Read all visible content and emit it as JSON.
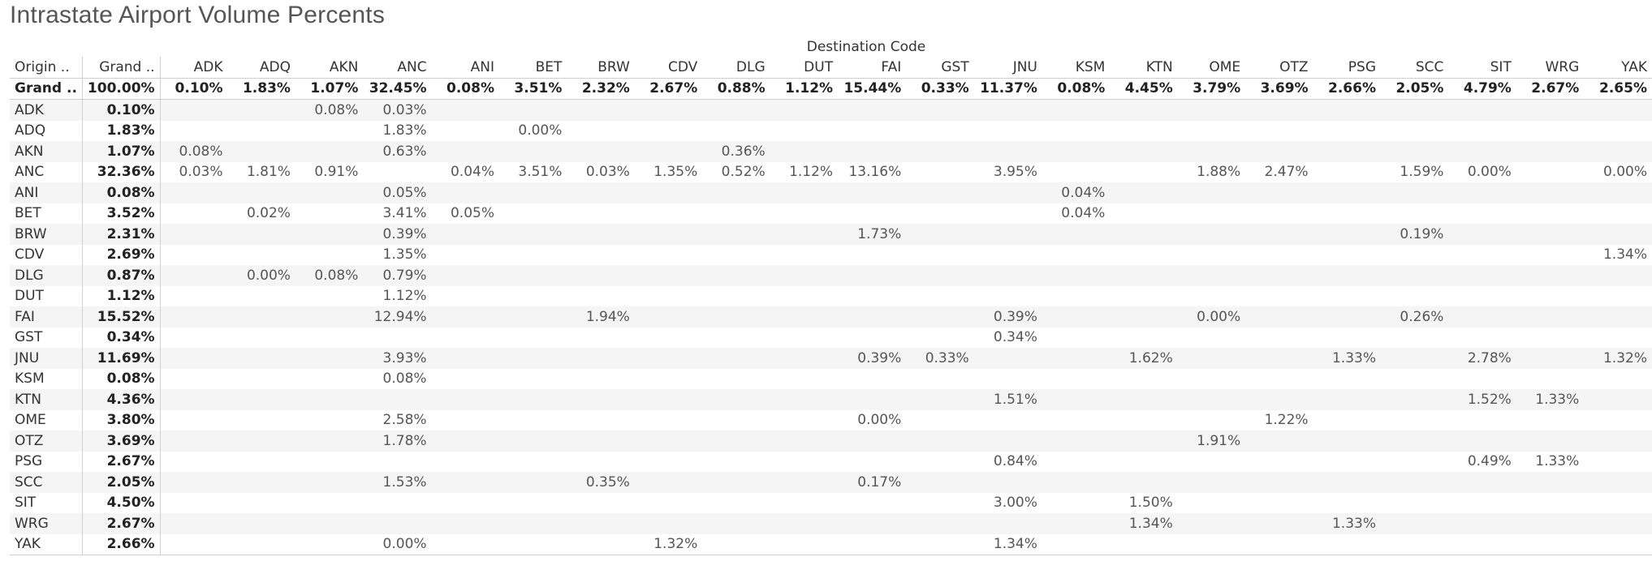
{
  "title": "Intrastate Airport Volume Percents",
  "chart_data": {
    "type": "table",
    "column_header_title": "Destination Code",
    "row_header_label": "Origin ..",
    "grand_label": "Grand ..",
    "destinations": [
      "ADK",
      "ADQ",
      "AKN",
      "ANC",
      "ANI",
      "BET",
      "BRW",
      "CDV",
      "DLG",
      "DUT",
      "FAI",
      "GST",
      "JNU",
      "KSM",
      "KTN",
      "OME",
      "OTZ",
      "PSG",
      "SCC",
      "SIT",
      "WRG",
      "YAK"
    ],
    "grand_total": "100.00%",
    "column_totals": [
      "0.10%",
      "1.83%",
      "1.07%",
      "32.45%",
      "0.08%",
      "3.51%",
      "2.32%",
      "2.67%",
      "0.88%",
      "1.12%",
      "15.44%",
      "0.33%",
      "11.37%",
      "0.08%",
      "4.45%",
      "3.79%",
      "3.69%",
      "2.66%",
      "2.05%",
      "4.79%",
      "2.67%",
      "2.65%"
    ],
    "rows": [
      {
        "origin": "ADK",
        "total": "0.10%",
        "cells": [
          "",
          "",
          "0.08%",
          "0.03%",
          "",
          "",
          "",
          "",
          "",
          "",
          "",
          "",
          "",
          "",
          "",
          "",
          "",
          "",
          "",
          "",
          "",
          ""
        ]
      },
      {
        "origin": "ADQ",
        "total": "1.83%",
        "cells": [
          "",
          "",
          "",
          "1.83%",
          "",
          "0.00%",
          "",
          "",
          "",
          "",
          "",
          "",
          "",
          "",
          "",
          "",
          "",
          "",
          "",
          "",
          "",
          ""
        ]
      },
      {
        "origin": "AKN",
        "total": "1.07%",
        "cells": [
          "0.08%",
          "",
          "",
          "0.63%",
          "",
          "",
          "",
          "",
          "0.36%",
          "",
          "",
          "",
          "",
          "",
          "",
          "",
          "",
          "",
          "",
          "",
          "",
          ""
        ]
      },
      {
        "origin": "ANC",
        "total": "32.36%",
        "cells": [
          "0.03%",
          "1.81%",
          "0.91%",
          "",
          "0.04%",
          "3.51%",
          "0.03%",
          "1.35%",
          "0.52%",
          "1.12%",
          "13.16%",
          "",
          "3.95%",
          "",
          "",
          "1.88%",
          "2.47%",
          "",
          "1.59%",
          "0.00%",
          "",
          "0.00%"
        ]
      },
      {
        "origin": "ANI",
        "total": "0.08%",
        "cells": [
          "",
          "",
          "",
          "0.05%",
          "",
          "",
          "",
          "",
          "",
          "",
          "",
          "",
          "",
          "0.04%",
          "",
          "",
          "",
          "",
          "",
          "",
          "",
          ""
        ]
      },
      {
        "origin": "BET",
        "total": "3.52%",
        "cells": [
          "",
          "0.02%",
          "",
          "3.41%",
          "0.05%",
          "",
          "",
          "",
          "",
          "",
          "",
          "",
          "",
          "0.04%",
          "",
          "",
          "",
          "",
          "",
          "",
          "",
          ""
        ]
      },
      {
        "origin": "BRW",
        "total": "2.31%",
        "cells": [
          "",
          "",
          "",
          "0.39%",
          "",
          "",
          "",
          "",
          "",
          "",
          "1.73%",
          "",
          "",
          "",
          "",
          "",
          "",
          "",
          "0.19%",
          "",
          "",
          ""
        ]
      },
      {
        "origin": "CDV",
        "total": "2.69%",
        "cells": [
          "",
          "",
          "",
          "1.35%",
          "",
          "",
          "",
          "",
          "",
          "",
          "",
          "",
          "",
          "",
          "",
          "",
          "",
          "",
          "",
          "",
          "",
          "1.34%"
        ]
      },
      {
        "origin": "DLG",
        "total": "0.87%",
        "cells": [
          "",
          "0.00%",
          "0.08%",
          "0.79%",
          "",
          "",
          "",
          "",
          "",
          "",
          "",
          "",
          "",
          "",
          "",
          "",
          "",
          "",
          "",
          "",
          "",
          ""
        ]
      },
      {
        "origin": "DUT",
        "total": "1.12%",
        "cells": [
          "",
          "",
          "",
          "1.12%",
          "",
          "",
          "",
          "",
          "",
          "",
          "",
          "",
          "",
          "",
          "",
          "",
          "",
          "",
          "",
          "",
          "",
          ""
        ]
      },
      {
        "origin": "FAI",
        "total": "15.52%",
        "cells": [
          "",
          "",
          "",
          "12.94%",
          "",
          "",
          "1.94%",
          "",
          "",
          "",
          "",
          "",
          "0.39%",
          "",
          "",
          "0.00%",
          "",
          "",
          "0.26%",
          "",
          "",
          ""
        ]
      },
      {
        "origin": "GST",
        "total": "0.34%",
        "cells": [
          "",
          "",
          "",
          "",
          "",
          "",
          "",
          "",
          "",
          "",
          "",
          "",
          "0.34%",
          "",
          "",
          "",
          "",
          "",
          "",
          "",
          "",
          ""
        ]
      },
      {
        "origin": "JNU",
        "total": "11.69%",
        "cells": [
          "",
          "",
          "",
          "3.93%",
          "",
          "",
          "",
          "",
          "",
          "",
          "0.39%",
          "0.33%",
          "",
          "",
          "1.62%",
          "",
          "",
          "1.33%",
          "",
          "2.78%",
          "",
          "1.32%"
        ]
      },
      {
        "origin": "KSM",
        "total": "0.08%",
        "cells": [
          "",
          "",
          "",
          "0.08%",
          "",
          "",
          "",
          "",
          "",
          "",
          "",
          "",
          "",
          "",
          "",
          "",
          "",
          "",
          "",
          "",
          "",
          ""
        ]
      },
      {
        "origin": "KTN",
        "total": "4.36%",
        "cells": [
          "",
          "",
          "",
          "",
          "",
          "",
          "",
          "",
          "",
          "",
          "",
          "",
          "1.51%",
          "",
          "",
          "",
          "",
          "",
          "",
          "1.52%",
          "1.33%",
          ""
        ]
      },
      {
        "origin": "OME",
        "total": "3.80%",
        "cells": [
          "",
          "",
          "",
          "2.58%",
          "",
          "",
          "",
          "",
          "",
          "",
          "0.00%",
          "",
          "",
          "",
          "",
          "",
          "1.22%",
          "",
          "",
          "",
          "",
          ""
        ]
      },
      {
        "origin": "OTZ",
        "total": "3.69%",
        "cells": [
          "",
          "",
          "",
          "1.78%",
          "",
          "",
          "",
          "",
          "",
          "",
          "",
          "",
          "",
          "",
          "",
          "1.91%",
          "",
          "",
          "",
          "",
          "",
          ""
        ]
      },
      {
        "origin": "PSG",
        "total": "2.67%",
        "cells": [
          "",
          "",
          "",
          "",
          "",
          "",
          "",
          "",
          "",
          "",
          "",
          "",
          "0.84%",
          "",
          "",
          "",
          "",
          "",
          "",
          "0.49%",
          "1.33%",
          ""
        ]
      },
      {
        "origin": "SCC",
        "total": "2.05%",
        "cells": [
          "",
          "",
          "",
          "1.53%",
          "",
          "",
          "0.35%",
          "",
          "",
          "",
          "0.17%",
          "",
          "",
          "",
          "",
          "",
          "",
          "",
          "",
          "",
          "",
          ""
        ]
      },
      {
        "origin": "SIT",
        "total": "4.50%",
        "cells": [
          "",
          "",
          "",
          "",
          "",
          "",
          "",
          "",
          "",
          "",
          "",
          "",
          "3.00%",
          "",
          "1.50%",
          "",
          "",
          "",
          "",
          "",
          "",
          ""
        ]
      },
      {
        "origin": "WRG",
        "total": "2.67%",
        "cells": [
          "",
          "",
          "",
          "",
          "",
          "",
          "",
          "",
          "",
          "",
          "",
          "",
          "",
          "",
          "1.34%",
          "",
          "",
          "1.33%",
          "",
          "",
          "",
          ""
        ]
      },
      {
        "origin": "YAK",
        "total": "2.66%",
        "cells": [
          "",
          "",
          "",
          "0.00%",
          "",
          "",
          "",
          "1.32%",
          "",
          "",
          "",
          "",
          "1.34%",
          "",
          "",
          "",
          "",
          "",
          "",
          "",
          "",
          ""
        ]
      }
    ]
  }
}
